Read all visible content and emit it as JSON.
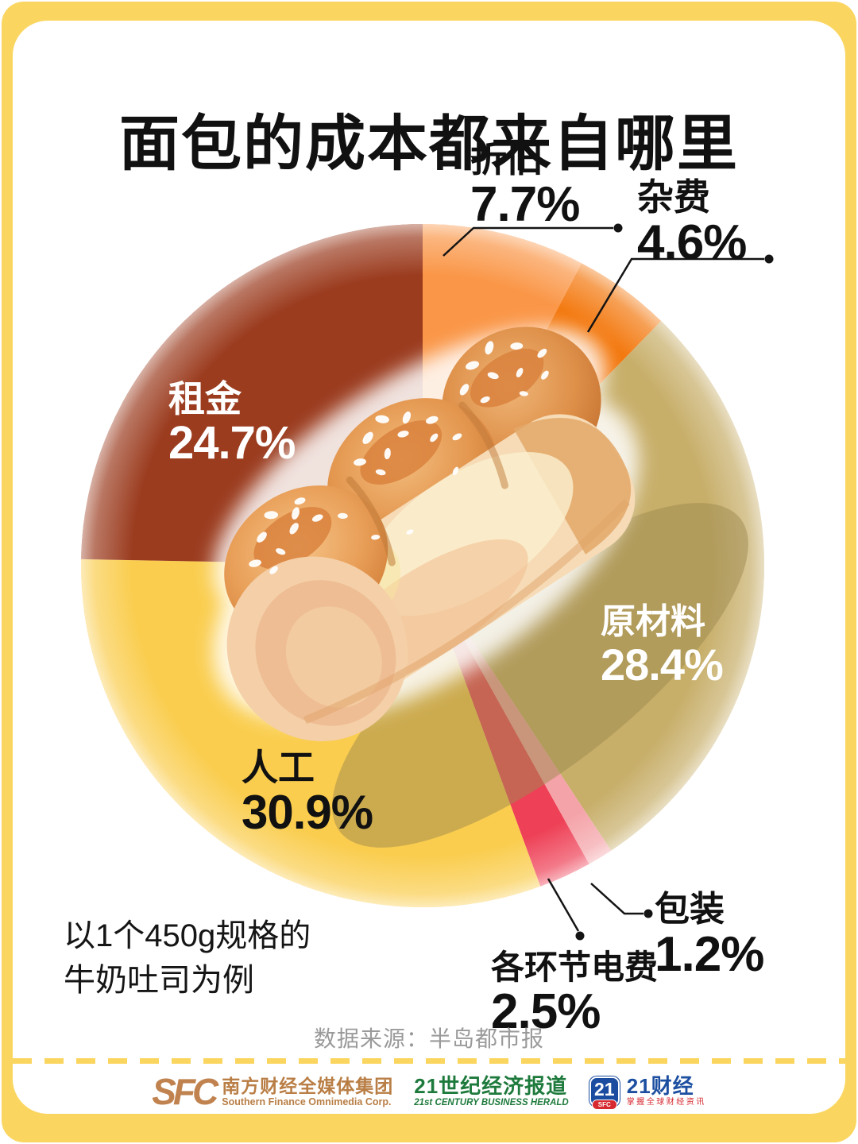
{
  "title": "面包的成本都来自哪里",
  "note": {
    "line1": "以1个450g规格的",
    "line2": "牛奶吐司为例"
  },
  "source": "数据来源：半岛都市报",
  "colors": {
    "frame_yellow": "#FAD661",
    "card_white": "#FFFFFF",
    "leader_line": "#141414",
    "title_text": "#111111"
  },
  "chart_data": {
    "type": "pie",
    "title": "面包的成本都来自哪里",
    "unit": "%",
    "start_angle_deg": 0,
    "direction": "clockwise",
    "legend_position": "around-slices",
    "slices": [
      {
        "id": "depreciation",
        "label": "折旧",
        "value": 7.7,
        "display": "7.7%",
        "color": "#FA9647"
      },
      {
        "id": "misc-fees",
        "label": "杂费",
        "value": 4.6,
        "display": "4.6%",
        "color": "#F3780E"
      },
      {
        "id": "raw-materials",
        "label": "原材料",
        "value": 28.4,
        "display": "28.4%",
        "color": "#C7AE69"
      },
      {
        "id": "packaging",
        "label": "包装",
        "value": 1.2,
        "display": "1.2%",
        "color": "#F4A3A8"
      },
      {
        "id": "electricity",
        "label": "各环节电费",
        "value": 2.5,
        "display": "2.5%",
        "color": "#EE4056"
      },
      {
        "id": "labor",
        "label": "人工",
        "value": 30.9,
        "display": "30.9%",
        "color": "#FACD4E"
      },
      {
        "id": "rent",
        "label": "租金",
        "value": 24.7,
        "display": "24.7%",
        "color": "#9B3C1F"
      }
    ]
  },
  "footer": {
    "sfc_logo": "SFC",
    "sfc_cn": "南方财经全媒体集团",
    "sfc_en": "Southern Finance Omnimedia Corp.",
    "herald_cn": "21世纪经济报道",
    "herald_en": "21st CENTURY BUSINESS HERALD",
    "app_badge_number": "21",
    "app_badge_sub": "SFC",
    "app_cn": "21财经",
    "app_slogan": "掌握全球财经资讯"
  }
}
